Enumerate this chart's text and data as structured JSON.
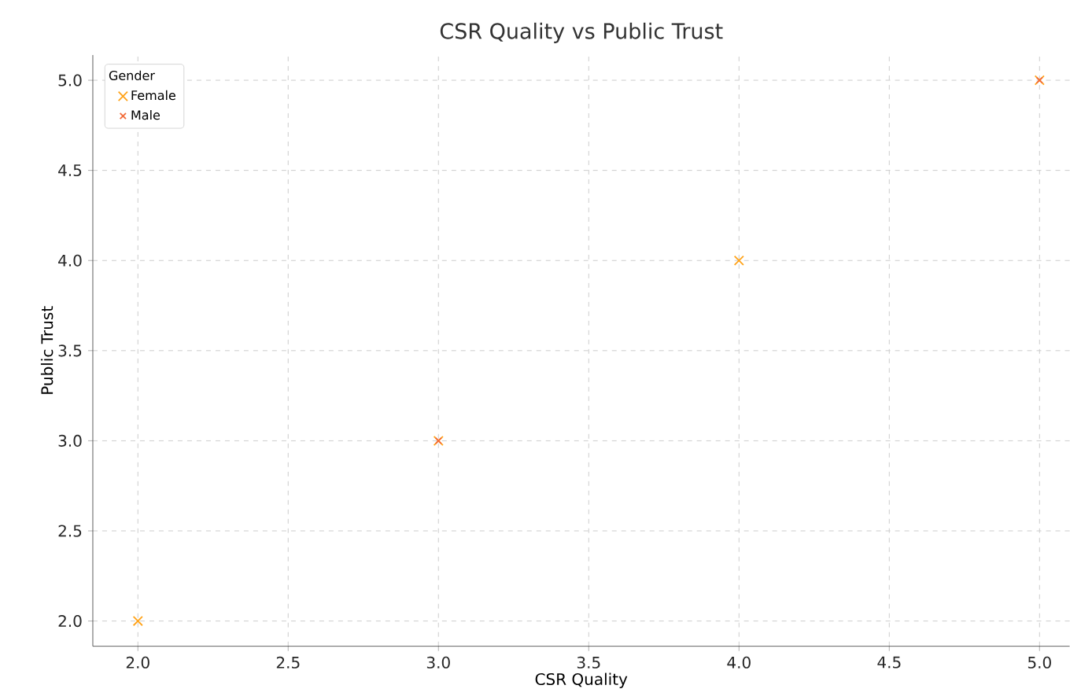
{
  "chart_data": {
    "type": "scatter",
    "title": "CSR Quality vs Public Trust",
    "xlabel": "CSR Quality",
    "ylabel": "Public Trust",
    "legend_title": "Gender",
    "series": [
      {
        "name": "Female",
        "color": "#ffa31a",
        "x": [
          2,
          3,
          4,
          5
        ],
        "values": [
          2,
          3,
          4,
          5
        ]
      },
      {
        "name": "Male",
        "color": "#f26b38",
        "x": [
          3,
          5
        ],
        "values": [
          3,
          5
        ]
      }
    ],
    "xlim": [
      1.85,
      5.1
    ],
    "ylim": [
      1.86,
      5.14
    ],
    "xticks": [
      {
        "value": 2,
        "label": "2.0"
      },
      2.5,
      {
        "value": 3,
        "label": "3.0"
      },
      3.5,
      {
        "value": 4,
        "label": "4.0"
      },
      4.5,
      {
        "value": 5,
        "label": "5.0"
      }
    ],
    "yticks": [
      {
        "value": 2,
        "label": "2.0"
      },
      2.5,
      {
        "value": 3,
        "label": "3.0"
      },
      3.5,
      {
        "value": 4,
        "label": "4.0"
      },
      4.5,
      {
        "value": 5,
        "label": "5.0"
      }
    ],
    "grid": true,
    "legend": "top left",
    "marker": "cross"
  }
}
